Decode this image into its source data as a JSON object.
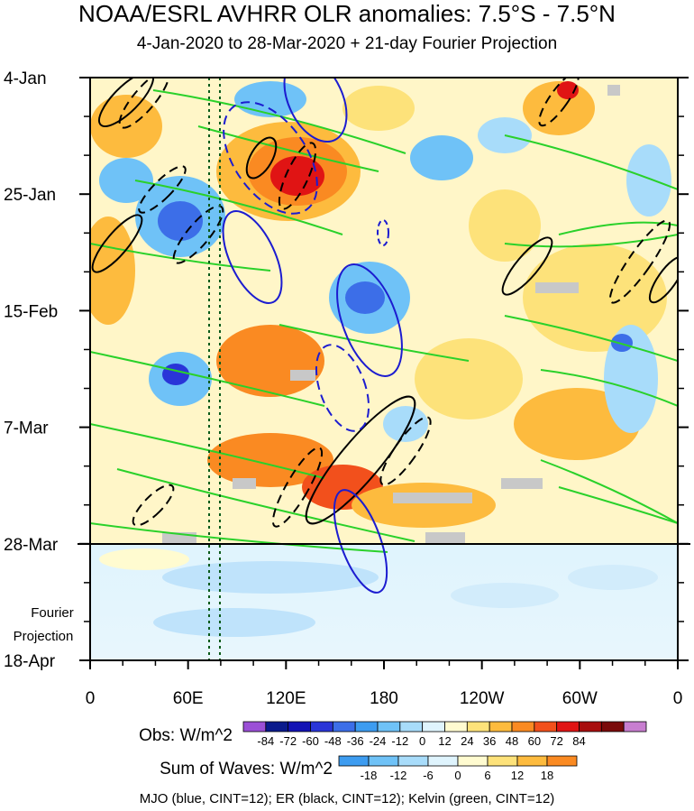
{
  "chart_data": {
    "type": "heatmap",
    "title": "NOAA/ESRL AVHRR OLR anomalies: 7.5°S - 7.5°N",
    "subtitle": "4-Jan-2020 to 28-Mar-2020 + 21-day Fourier Projection",
    "x_ticks": [
      "0",
      "60E",
      "120E",
      "180",
      "120W",
      "60W",
      "0"
    ],
    "y_ticks": [
      "4-Jan",
      "25-Jan",
      "15-Feb",
      "7-Mar",
      "28-Mar",
      "18-Apr"
    ],
    "projection_label": [
      "Fourier",
      "Projection"
    ],
    "obs_colorbar": {
      "label": "Obs: W/m^2",
      "ticks": [
        "-84",
        "-72",
        "-60",
        "-48",
        "-36",
        "-24",
        "-12",
        "0",
        "12",
        "24",
        "36",
        "48",
        "60",
        "72",
        "84"
      ],
      "colors": [
        "#9b4fd6",
        "#0a1a8c",
        "#1212b4",
        "#2a35d8",
        "#3c6ee8",
        "#3d9cf0",
        "#6fc2f7",
        "#a8dcfa",
        "#dff4fd",
        "#fffbd0",
        "#fde27a",
        "#fdbb3e",
        "#fa8a22",
        "#f2501c",
        "#e01414",
        "#a80d0d",
        "#7a0a0a",
        "#c87ed0"
      ]
    },
    "waves_colorbar": {
      "label": "Sum of Waves: W/m^2",
      "ticks": [
        "-18",
        "-12",
        "-6",
        "0",
        "6",
        "12",
        "18"
      ],
      "colors": [
        "#3d9cf0",
        "#6fc2f7",
        "#a8dcfa",
        "#dff4fd",
        "#fffbd0",
        "#fde27a",
        "#fdbb3e",
        "#fa8a22"
      ]
    },
    "footnote": "MJO (blue, CINT=12); ER (black, CINT=12); Kelvin (green, CINT=12)",
    "series_colors": {
      "MJO": "#1c1cd0",
      "ER": "#000000",
      "Kelvin": "#2ad12a"
    }
  }
}
